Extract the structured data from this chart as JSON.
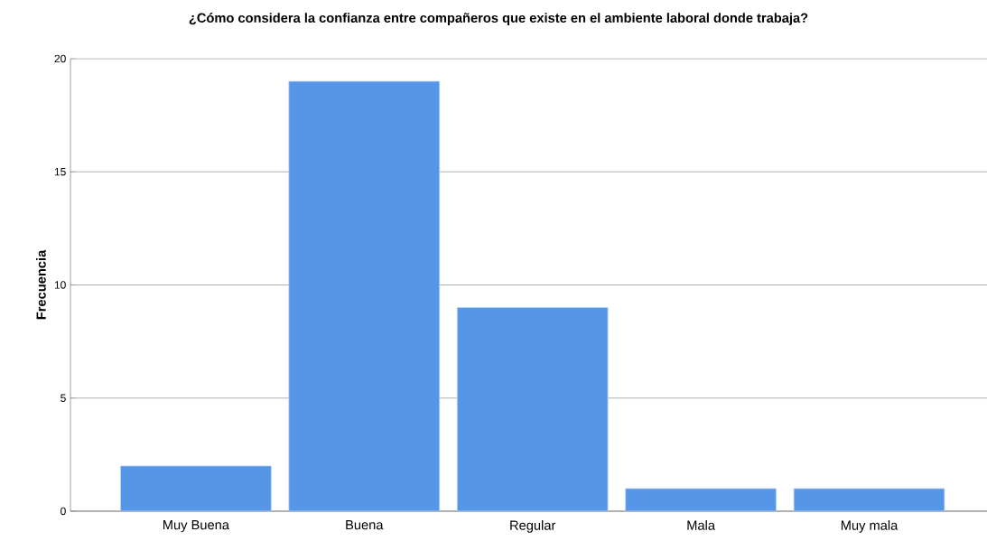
{
  "chart_data": {
    "type": "bar",
    "title": "¿Cómo considera la confianza entre compañeros que existe en el ambiente laboral donde trabaja?",
    "ylabel": "Frecuencia",
    "categories": [
      "Muy Buena",
      "Buena",
      "Regular",
      "Mala",
      "Muy mala"
    ],
    "values": [
      2,
      19,
      9,
      1,
      1
    ],
    "color": "#5596e6",
    "ylim": [
      0,
      20
    ],
    "yticks": [
      0,
      5,
      10,
      15,
      20
    ],
    "grid": "y"
  }
}
